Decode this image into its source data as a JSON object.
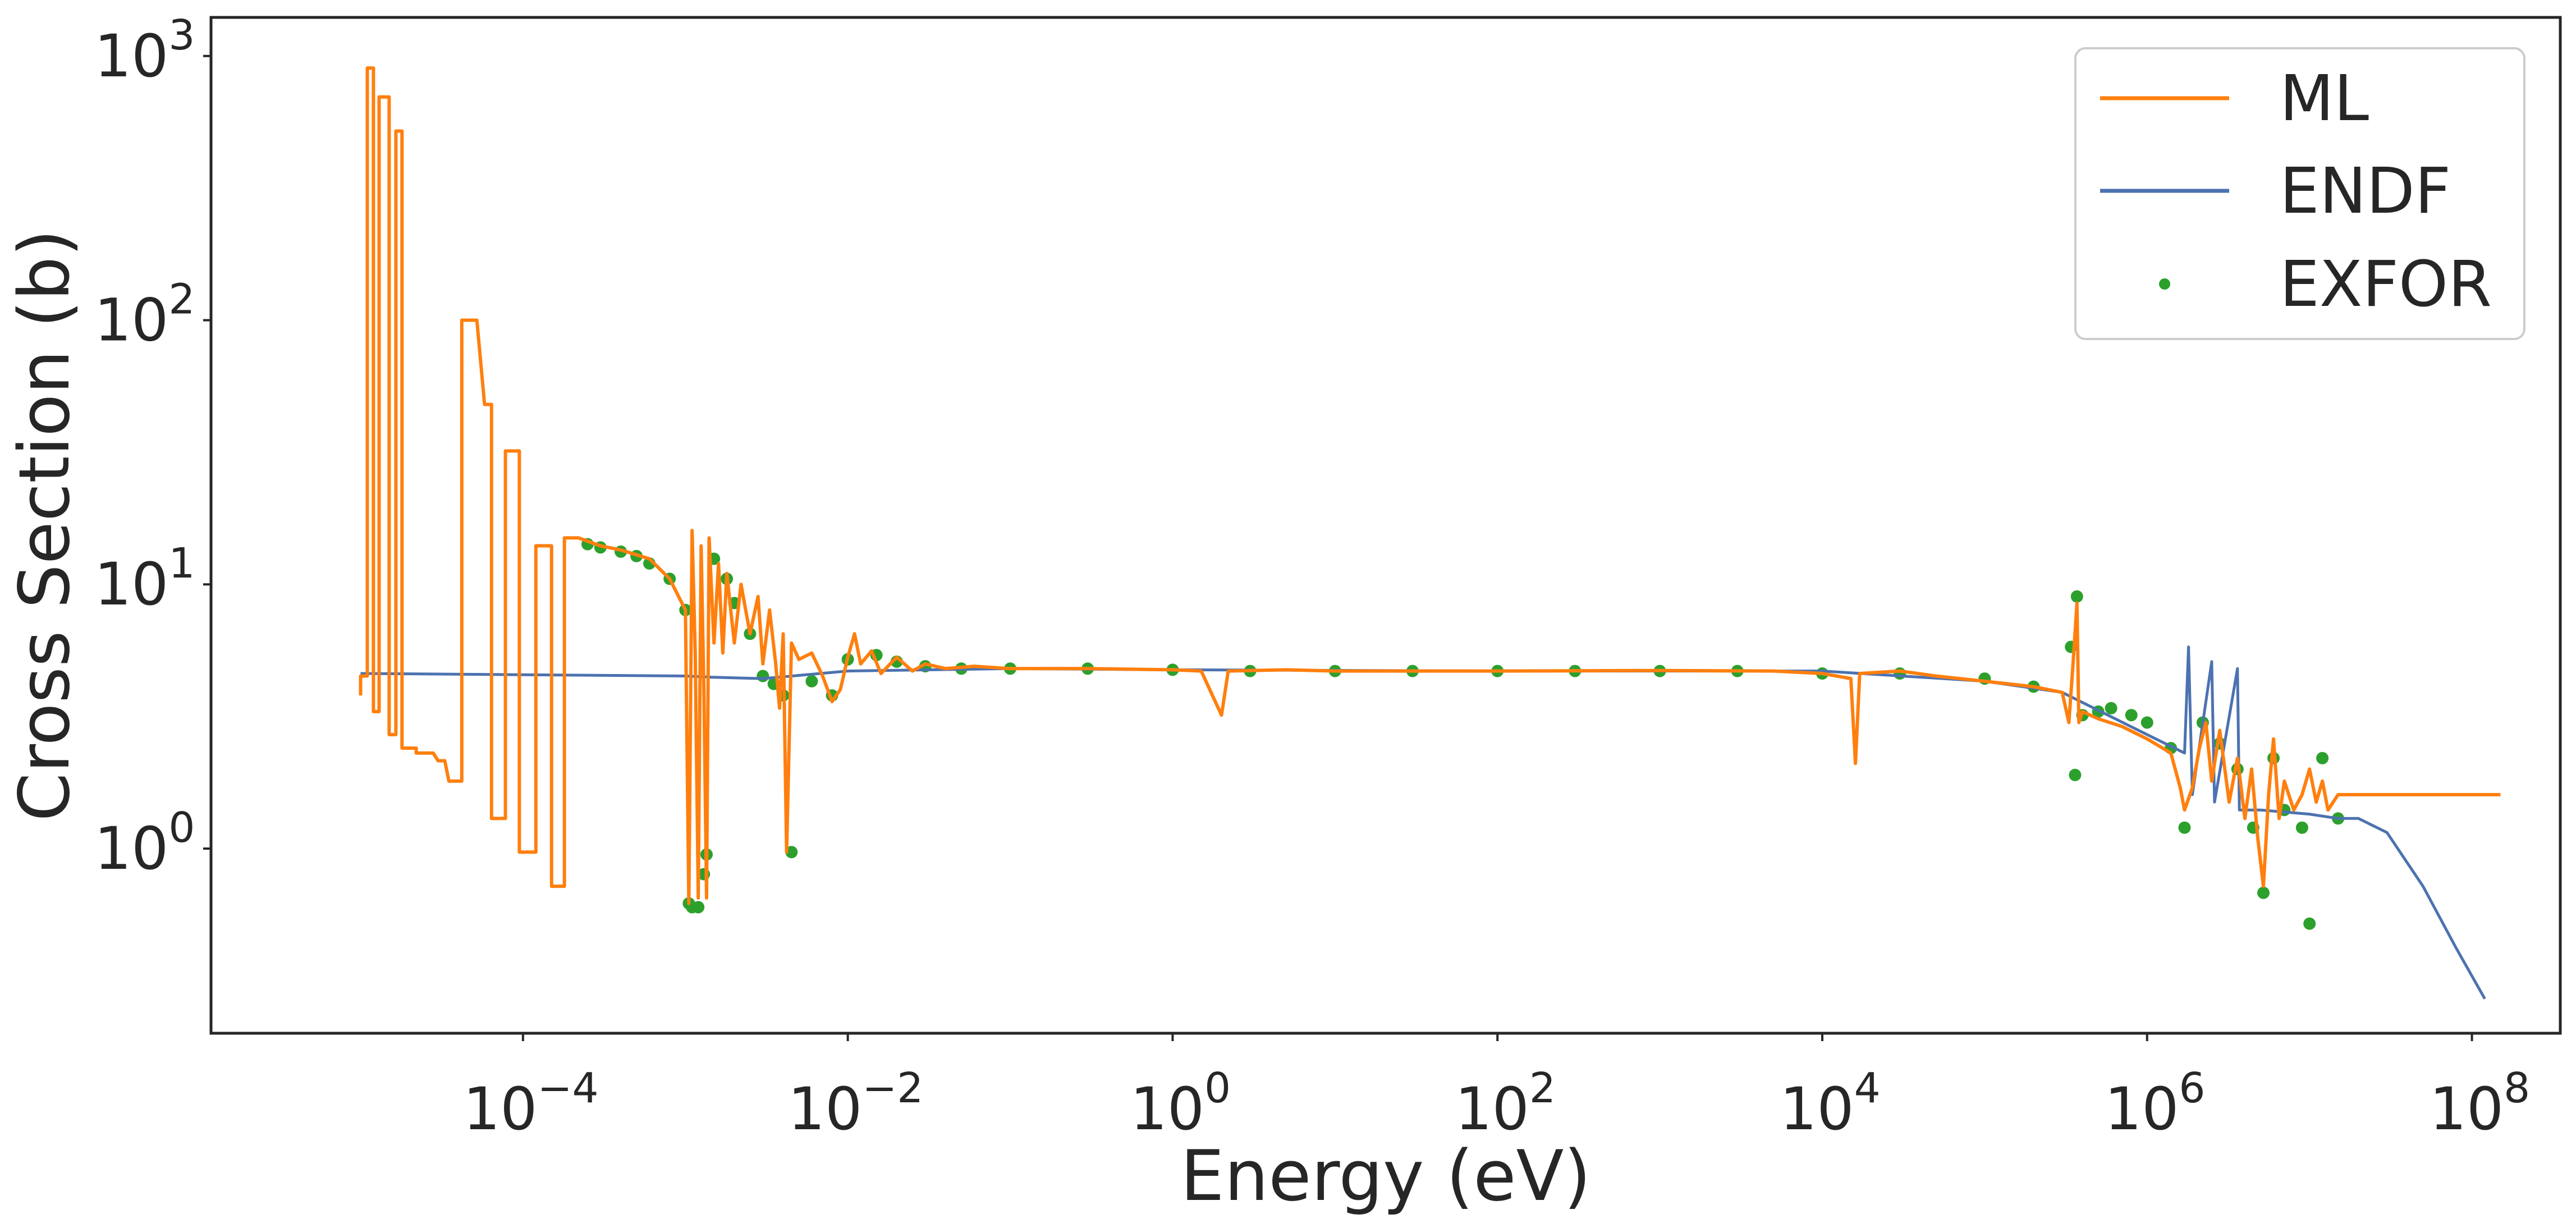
{
  "chart_data": {
    "type": "line",
    "title": "",
    "xlabel": "Energy (eV)",
    "ylabel": "Cross Section (b)",
    "x_scale": "log",
    "y_scale": "log",
    "xlim": [
      1.2e-06,
      350000000.0
    ],
    "ylim": [
      0.2,
      1400
    ],
    "grid": false,
    "legend_position": "upper right",
    "x_ticks": [
      {
        "value": 0.0001,
        "base": "10",
        "exp": "−4"
      },
      {
        "value": 0.01,
        "base": "10",
        "exp": "−2"
      },
      {
        "value": 1,
        "base": "10",
        "exp": "0"
      },
      {
        "value": 100,
        "base": "10",
        "exp": "2"
      },
      {
        "value": 10000,
        "base": "10",
        "exp": "4"
      },
      {
        "value": 1000000,
        "base": "10",
        "exp": "6"
      },
      {
        "value": 100000000,
        "base": "10",
        "exp": "8"
      }
    ],
    "y_ticks": [
      {
        "value": 1,
        "base": "10",
        "exp": "0"
      },
      {
        "value": 10,
        "base": "10",
        "exp": "1"
      },
      {
        "value": 100,
        "base": "10",
        "exp": "2"
      },
      {
        "value": 1000,
        "base": "10",
        "exp": "3"
      }
    ],
    "series": [
      {
        "name": "ML",
        "kind": "step-line",
        "color": "#ff7f0e",
        "points": [
          [
            1e-05,
            3.8
          ],
          [
            1e-05,
            4.5
          ],
          [
            1.1e-05,
            4.5
          ],
          [
            1.1e-05,
            900
          ],
          [
            1.2e-05,
            900
          ],
          [
            1.2e-05,
            3.3
          ],
          [
            1.3e-05,
            3.3
          ],
          [
            1.3e-05,
            700
          ],
          [
            1.5e-05,
            700
          ],
          [
            1.5e-05,
            2.7
          ],
          [
            1.65e-05,
            2.7
          ],
          [
            1.65e-05,
            520
          ],
          [
            1.8e-05,
            520
          ],
          [
            1.8e-05,
            2.4
          ],
          [
            2.2e-05,
            2.4
          ],
          [
            2.2e-05,
            2.3
          ],
          [
            2.8e-05,
            2.3
          ],
          [
            3e-05,
            2.15
          ],
          [
            3.3e-05,
            2.15
          ],
          [
            3.5e-05,
            1.8
          ],
          [
            4.2e-05,
            1.8
          ],
          [
            4.2e-05,
            100
          ],
          [
            5.2e-05,
            100
          ],
          [
            5.8e-05,
            48
          ],
          [
            6.4e-05,
            48
          ],
          [
            6.4e-05,
            1.3
          ],
          [
            7.8e-05,
            1.3
          ],
          [
            7.8e-05,
            32
          ],
          [
            9.5e-05,
            32
          ],
          [
            9.5e-05,
            0.97
          ],
          [
            0.00012,
            0.97
          ],
          [
            0.00012,
            14
          ],
          [
            0.00015,
            14
          ],
          [
            0.00015,
            0.72
          ],
          [
            0.00018,
            0.72
          ],
          [
            0.00018,
            15
          ],
          [
            0.00022,
            15
          ],
          [
            0.0003,
            14
          ],
          [
            0.0004,
            13.5
          ],
          [
            0.0006,
            12.5
          ],
          [
            0.0008,
            10.5
          ],
          [
            0.001,
            8
          ],
          [
            0.00105,
            0.62
          ],
          [
            0.0011,
            16
          ],
          [
            0.00115,
            5.5
          ],
          [
            0.0012,
            0.65
          ],
          [
            0.00125,
            14
          ],
          [
            0.0013,
            4
          ],
          [
            0.00135,
            0.65
          ],
          [
            0.0014,
            15
          ],
          [
            0.0015,
            6
          ],
          [
            0.0016,
            12
          ],
          [
            0.0017,
            5.5
          ],
          [
            0.0018,
            11
          ],
          [
            0.002,
            6
          ],
          [
            0.0022,
            10
          ],
          [
            0.0025,
            6.5
          ],
          [
            0.0028,
            9
          ],
          [
            0.003,
            5
          ],
          [
            0.0033,
            8
          ],
          [
            0.0036,
            5
          ],
          [
            0.0038,
            3.4
          ],
          [
            0.004,
            6.5
          ],
          [
            0.0042,
            0.97
          ],
          [
            0.0045,
            6
          ],
          [
            0.005,
            5.2
          ],
          [
            0.006,
            5.5
          ],
          [
            0.007,
            4.5
          ],
          [
            0.008,
            3.6
          ],
          [
            0.009,
            4
          ],
          [
            0.01,
            5.3
          ],
          [
            0.011,
            6.5
          ],
          [
            0.012,
            5
          ],
          [
            0.014,
            5.6
          ],
          [
            0.016,
            4.6
          ],
          [
            0.02,
            5.3
          ],
          [
            0.025,
            4.7
          ],
          [
            0.03,
            5
          ],
          [
            0.04,
            4.8
          ],
          [
            0.06,
            4.9
          ],
          [
            0.1,
            4.8
          ],
          [
            0.3,
            4.8
          ],
          [
            1,
            4.75
          ],
          [
            1.5,
            4.7
          ],
          [
            2,
            3.2
          ],
          [
            2.2,
            4.7
          ],
          [
            5,
            4.75
          ],
          [
            10,
            4.7
          ],
          [
            100,
            4.7
          ],
          [
            1000,
            4.72
          ],
          [
            5000,
            4.7
          ],
          [
            10000,
            4.6
          ],
          [
            15000,
            4.4
          ],
          [
            16000,
            2.1
          ],
          [
            17000,
            4.6
          ],
          [
            30000,
            4.7
          ],
          [
            50000,
            4.5
          ],
          [
            100000,
            4.3
          ],
          [
            200000,
            4.1
          ],
          [
            300000,
            3.9
          ],
          [
            330000,
            3
          ],
          [
            350000,
            5
          ],
          [
            370000,
            8.5
          ],
          [
            380000,
            3
          ],
          [
            400000,
            3.3
          ],
          [
            500000,
            3.1
          ],
          [
            700000,
            2.9
          ],
          [
            1000000,
            2.6
          ],
          [
            1400000,
            2.3
          ],
          [
            1600000,
            1.7
          ],
          [
            1700000,
            1.4
          ],
          [
            1900000,
            1.7
          ],
          [
            2100000,
            2.4
          ],
          [
            2300000,
            3
          ],
          [
            2500000,
            1.8
          ],
          [
            2800000,
            2.8
          ],
          [
            3200000,
            1.5
          ],
          [
            3600000,
            2.2
          ],
          [
            4000000,
            1.3
          ],
          [
            4400000,
            2
          ],
          [
            4800000,
            1.1
          ],
          [
            5200000,
            0.72
          ],
          [
            5600000,
            1.6
          ],
          [
            6000000,
            2.6
          ],
          [
            6500000,
            1.3
          ],
          [
            7000000,
            1.8
          ],
          [
            8000000,
            1.4
          ],
          [
            9000000,
            1.6
          ],
          [
            10000000,
            2
          ],
          [
            11000000,
            1.5
          ],
          [
            12000000,
            1.8
          ],
          [
            13000000,
            1.4
          ],
          [
            15000000,
            1.6
          ],
          [
            20000000,
            1.6
          ],
          [
            50000000,
            1.6
          ],
          [
            150000000,
            1.6
          ]
        ]
      },
      {
        "name": "ENDF",
        "kind": "line",
        "color": "#4c72b0",
        "points": [
          [
            1e-05,
            4.6
          ],
          [
            0.0001,
            4.55
          ],
          [
            0.001,
            4.5
          ],
          [
            0.0015,
            4.45
          ],
          [
            0.003,
            4.4
          ],
          [
            0.01,
            4.7
          ],
          [
            0.1,
            4.8
          ],
          [
            1,
            4.75
          ],
          [
            100,
            4.7
          ],
          [
            10000,
            4.7
          ],
          [
            100000,
            4.3
          ],
          [
            300000,
            3.9
          ],
          [
            1000000,
            2.7
          ],
          [
            1700000,
            2.3
          ],
          [
            1800000,
            5.8
          ],
          [
            1900000,
            1.6
          ],
          [
            2500000,
            5.1
          ],
          [
            2600000,
            1.5
          ],
          [
            3600000,
            4.8
          ],
          [
            3700000,
            1.4
          ],
          [
            5000000,
            1.4
          ],
          [
            10000000,
            1.35
          ],
          [
            15000000,
            1.3
          ],
          [
            20000000,
            1.3
          ],
          [
            30000000,
            1.15
          ],
          [
            50000000,
            0.72
          ],
          [
            80000000,
            0.42
          ],
          [
            120000000,
            0.27
          ]
        ]
      },
      {
        "name": "EXFOR",
        "kind": "scatter",
        "color": "#2ca02c",
        "points": [
          [
            0.00025,
            14.2
          ],
          [
            0.0003,
            13.8
          ],
          [
            0.0004,
            13.3
          ],
          [
            0.0005,
            12.8
          ],
          [
            0.0006,
            12
          ],
          [
            0.0008,
            10.5
          ],
          [
            0.001,
            8
          ],
          [
            0.00105,
            0.62
          ],
          [
            0.0011,
            0.6
          ],
          [
            0.0012,
            0.6
          ],
          [
            0.0013,
            0.8
          ],
          [
            0.00135,
            0.95
          ],
          [
            0.0015,
            12.5
          ],
          [
            0.0018,
            10.5
          ],
          [
            0.002,
            8.5
          ],
          [
            0.0025,
            6.5
          ],
          [
            0.003,
            4.5
          ],
          [
            0.0035,
            4.2
          ],
          [
            0.004,
            3.8
          ],
          [
            0.0045,
            0.97
          ],
          [
            0.006,
            4.3
          ],
          [
            0.008,
            3.8
          ],
          [
            0.01,
            5.2
          ],
          [
            0.015,
            5.4
          ],
          [
            0.02,
            5.1
          ],
          [
            0.03,
            4.9
          ],
          [
            0.05,
            4.8
          ],
          [
            0.1,
            4.8
          ],
          [
            0.3,
            4.8
          ],
          [
            1,
            4.75
          ],
          [
            3,
            4.7
          ],
          [
            10,
            4.7
          ],
          [
            30,
            4.7
          ],
          [
            100,
            4.7
          ],
          [
            300,
            4.7
          ],
          [
            1000,
            4.7
          ],
          [
            3000,
            4.7
          ],
          [
            10000,
            4.6
          ],
          [
            30000,
            4.6
          ],
          [
            100000,
            4.4
          ],
          [
            200000,
            4.1
          ],
          [
            340000,
            5.8
          ],
          [
            370000,
            9
          ],
          [
            360000,
            1.9
          ],
          [
            400000,
            3.2
          ],
          [
            500000,
            3.3
          ],
          [
            600000,
            3.4
          ],
          [
            800000,
            3.2
          ],
          [
            1000000,
            3
          ],
          [
            1400000,
            2.4
          ],
          [
            1700000,
            1.2
          ],
          [
            2200000,
            3
          ],
          [
            2800000,
            2.5
          ],
          [
            3600000,
            2
          ],
          [
            4500000,
            1.2
          ],
          [
            5200000,
            0.68
          ],
          [
            6000000,
            2.2
          ],
          [
            7000000,
            1.4
          ],
          [
            9000000,
            1.2
          ],
          [
            10000000,
            0.52
          ],
          [
            12000000,
            2.2
          ],
          [
            15000000,
            1.3
          ]
        ]
      }
    ]
  }
}
